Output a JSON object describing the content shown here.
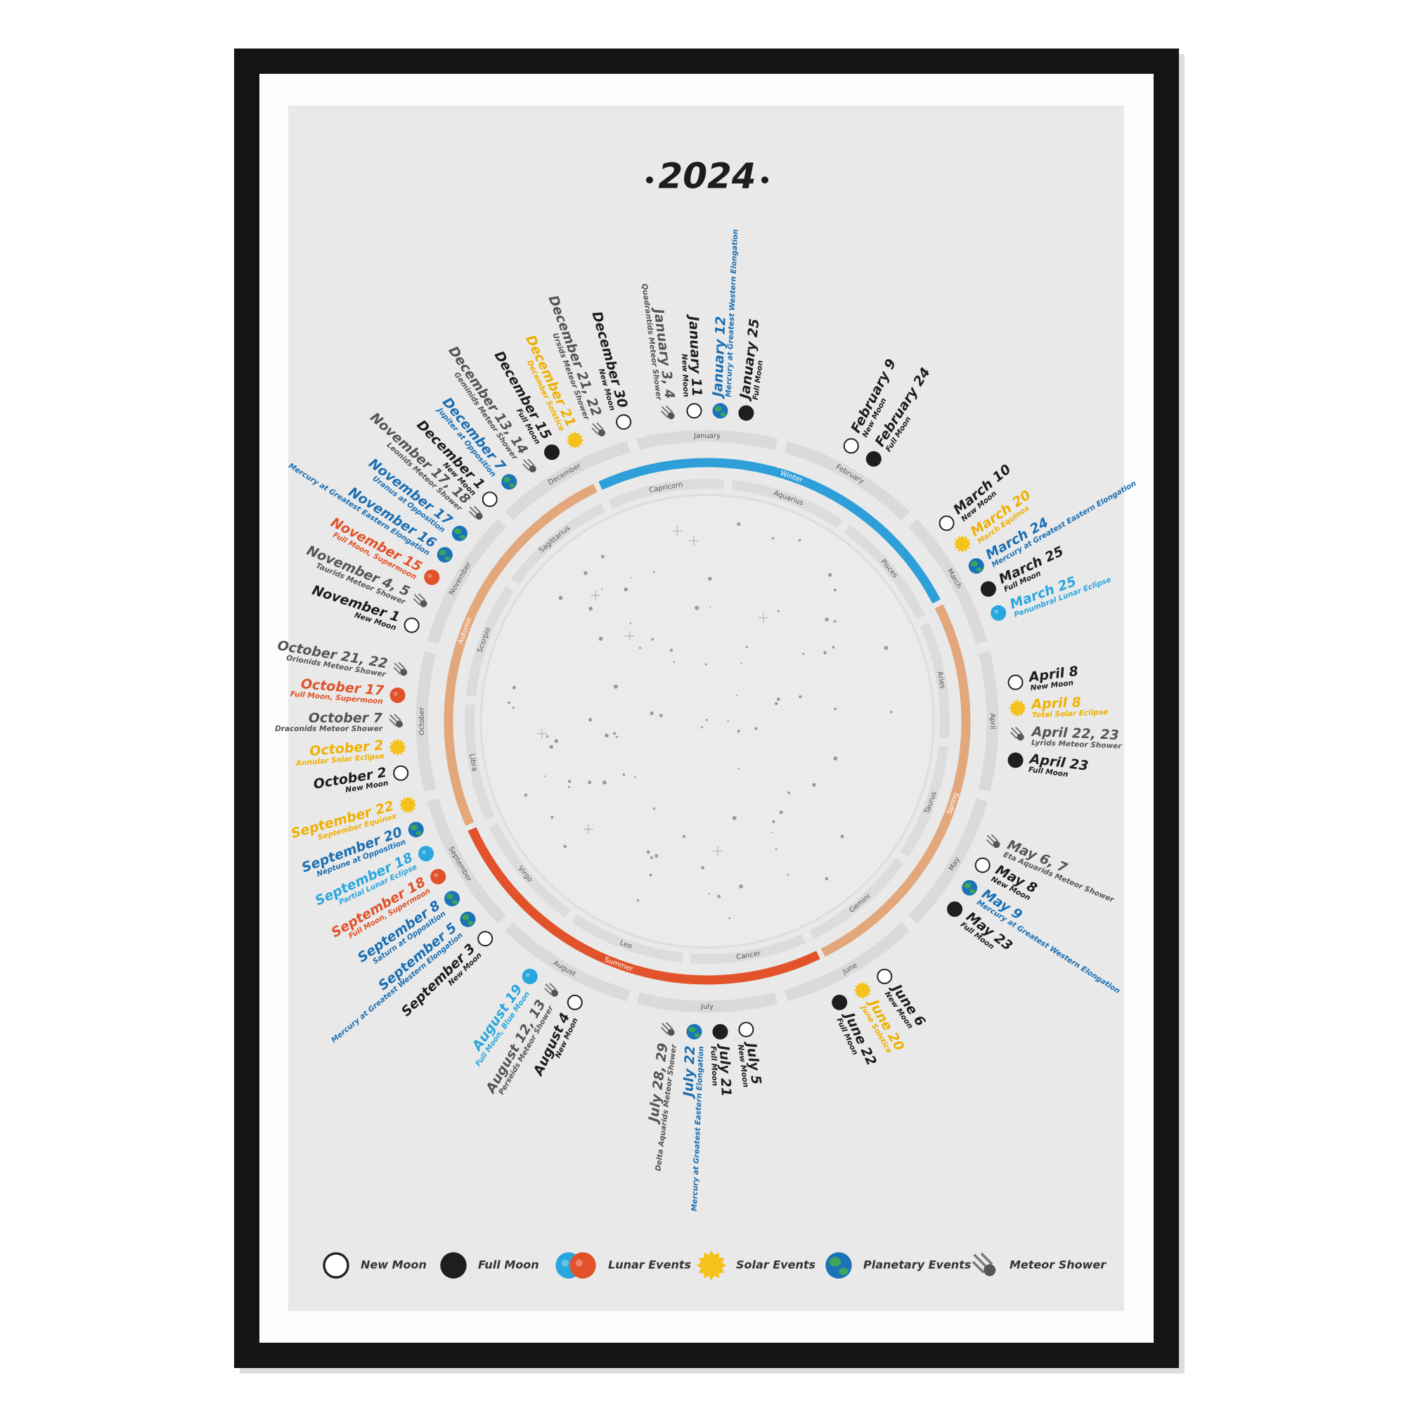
{
  "title": "2024",
  "months": [
    {
      "name": "January",
      "events": [
        {
          "date": "January 3, 4",
          "label": "Quadrantids Meteor Shower",
          "type": "meteor"
        },
        {
          "date": "January 11",
          "label": "New Moon",
          "type": "new-moon"
        },
        {
          "date": "January 12",
          "label": "Mercury at Greatest Western Elongation",
          "type": "planetary"
        },
        {
          "date": "January 25",
          "label": "Full Moon",
          "type": "full-moon"
        }
      ]
    },
    {
      "name": "February",
      "events": [
        {
          "date": "February 9",
          "label": "New Moon",
          "type": "new-moon"
        },
        {
          "date": "February 24",
          "label": "Full Moon",
          "type": "full-moon"
        }
      ]
    },
    {
      "name": "March",
      "events": [
        {
          "date": "March 10",
          "label": "New Moon",
          "type": "new-moon"
        },
        {
          "date": "March 20",
          "label": "March Equinox",
          "type": "solar"
        },
        {
          "date": "March 24",
          "label": "Mercury at Greatest Eastern Elongation",
          "type": "planetary"
        },
        {
          "date": "March 25",
          "label": "Full Moon",
          "type": "full-moon"
        },
        {
          "date": "March 25",
          "label": "Penumbral Lunar Eclipse",
          "type": "lunar",
          "color": "#2aa6de"
        }
      ]
    },
    {
      "name": "April",
      "events": [
        {
          "date": "April 8",
          "label": "New Moon",
          "type": "new-moon"
        },
        {
          "date": "April 8",
          "label": "Total Solar Eclipse",
          "type": "solar"
        },
        {
          "date": "April 22, 23",
          "label": "Lyrids Meteor Shower",
          "type": "meteor"
        },
        {
          "date": "April 23",
          "label": "Full Moon",
          "type": "full-moon"
        }
      ]
    },
    {
      "name": "May",
      "events": [
        {
          "date": "May 6, 7",
          "label": "Eta Aquarids Meteor Shower",
          "type": "meteor"
        },
        {
          "date": "May 8",
          "label": "New Moon",
          "type": "new-moon"
        },
        {
          "date": "May 9",
          "label": "Mercury at Greatest Western Elongation",
          "type": "planetary"
        },
        {
          "date": "May 23",
          "label": "Full Moon",
          "type": "full-moon"
        }
      ]
    },
    {
      "name": "June",
      "events": [
        {
          "date": "June 6",
          "label": "New Moon",
          "type": "new-moon"
        },
        {
          "date": "June 20",
          "label": "June Solstice",
          "type": "solar"
        },
        {
          "date": "June 22",
          "label": "Full Moon",
          "type": "full-moon"
        }
      ]
    },
    {
      "name": "July",
      "events": [
        {
          "date": "July 5",
          "label": "New Moon",
          "type": "new-moon"
        },
        {
          "date": "July 21",
          "label": "Full Moon",
          "type": "full-moon"
        },
        {
          "date": "July 22",
          "label": "Mercury at Greatest Eastern Elongation",
          "type": "planetary"
        },
        {
          "date": "July 28, 29",
          "label": "Delta Aquarids Meteor Shower",
          "type": "meteor"
        }
      ]
    },
    {
      "name": "August",
      "events": [
        {
          "date": "August 4",
          "label": "New Moon",
          "type": "new-moon"
        },
        {
          "date": "August 12, 13",
          "label": "Perseids Meteor Shower",
          "type": "meteor"
        },
        {
          "date": "August 19",
          "label": "Full Moon, Blue Moon",
          "type": "lunar",
          "color": "#2aa6de"
        }
      ]
    },
    {
      "name": "September",
      "events": [
        {
          "date": "September 3",
          "label": "New Moon",
          "type": "new-moon"
        },
        {
          "date": "September 5",
          "label": "Mercury at Greatest Western Elongation",
          "type": "planetary"
        },
        {
          "date": "September 8",
          "label": "Saturn at Opposition",
          "type": "planetary"
        },
        {
          "date": "September 18",
          "label": "Full Moon, Supermoon",
          "type": "lunar",
          "color": "#e2522a"
        },
        {
          "date": "September 18",
          "label": "Partial Lunar Eclipse",
          "type": "lunar",
          "color": "#2aa6de"
        },
        {
          "date": "September 20",
          "label": "Neptune at Opposition",
          "type": "planetary"
        },
        {
          "date": "September 22",
          "label": "September Equinox",
          "type": "solar"
        }
      ]
    },
    {
      "name": "October",
      "events": [
        {
          "date": "October 2",
          "label": "New Moon",
          "type": "new-moon"
        },
        {
          "date": "October 2",
          "label": "Annular Solar Eclipse",
          "type": "solar"
        },
        {
          "date": "October 7",
          "label": "Draconids Meteor Shower",
          "type": "meteor"
        },
        {
          "date": "October 17",
          "label": "Full Moon, Supermoon",
          "type": "lunar",
          "color": "#e2522a"
        },
        {
          "date": "October 21, 22",
          "label": "Orionids Meteor Shower",
          "type": "meteor"
        }
      ]
    },
    {
      "name": "November",
      "events": [
        {
          "date": "November 1",
          "label": "New Moon",
          "type": "new-moon"
        },
        {
          "date": "November 4, 5",
          "label": "Taurids Meteor Shower",
          "type": "meteor"
        },
        {
          "date": "November 15",
          "label": "Full Moon, Supermoon",
          "type": "lunar",
          "color": "#e2522a"
        },
        {
          "date": "November 16",
          "label": "Mercury at Greatest Eastern Elongation",
          "type": "planetary"
        },
        {
          "date": "November 17",
          "label": "Uranus at Opposition",
          "type": "planetary"
        },
        {
          "date": "November 17, 18",
          "label": "Leonids Meteor Shower",
          "type": "meteor"
        }
      ]
    },
    {
      "name": "December",
      "events": [
        {
          "date": "December 1",
          "label": "New Moon",
          "type": "new-moon"
        },
        {
          "date": "December 7",
          "label": "Jupiter at Opposition",
          "type": "planetary"
        },
        {
          "date": "December 13, 14",
          "label": "Geminids Meteor Shower",
          "type": "meteor"
        },
        {
          "date": "December 15",
          "label": "Full Moon",
          "type": "full-moon"
        },
        {
          "date": "December 21",
          "label": "December Solstice",
          "type": "solar"
        },
        {
          "date": "December 21, 22",
          "label": "Ursids Meteor Shower",
          "type": "meteor"
        },
        {
          "date": "December 30",
          "label": "New Moon",
          "type": "new-moon"
        }
      ]
    }
  ],
  "seasons": [
    "Winter",
    "Spring",
    "Summer",
    "Autumn"
  ],
  "zodiac": [
    "Capricorn",
    "Aquarius",
    "Pisces",
    "Aries",
    "Taurus",
    "Gemini",
    "Cancer",
    "Leo",
    "Virgo",
    "Libra",
    "Scorpio",
    "Sagittarius"
  ],
  "legend": [
    {
      "label": "New Moon",
      "type": "new-moon"
    },
    {
      "label": "Full Moon",
      "type": "full-moon"
    },
    {
      "label": "Lunar Events",
      "type": "lunar"
    },
    {
      "label": "Solar Events",
      "type": "solar"
    },
    {
      "label": "Planetary Events",
      "type": "planetary"
    },
    {
      "label": "Meteor Shower",
      "type": "meteor"
    }
  ]
}
